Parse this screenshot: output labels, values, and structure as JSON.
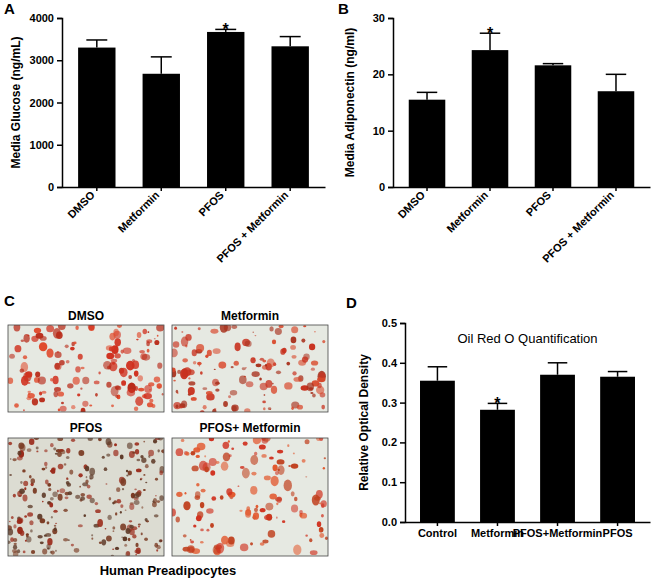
{
  "chart_data": [
    {
      "type": "bar",
      "panel": "A",
      "y_label": "Media Glucose (ng/mL)",
      "categories": [
        "DMSO",
        "Metformin",
        "PFOS",
        "PFOS + Metformin"
      ],
      "values": [
        3300,
        2680,
        3670,
        3330
      ],
      "errors": [
        180,
        400,
        60,
        230
      ],
      "color": "#000000",
      "ylim": [
        0,
        4000
      ],
      "yticks": [
        0,
        1000,
        2000,
        3000,
        4000
      ],
      "annotations": [
        {
          "text": "*",
          "index": 2
        }
      ]
    },
    {
      "type": "bar",
      "panel": "B",
      "y_label": "Media Adiponectin (ng/ml)",
      "categories": [
        "DMSO",
        "Metformin",
        "PFOS",
        "PFOS + Metformin"
      ],
      "values": [
        15.5,
        24.3,
        21.6,
        17.0
      ],
      "errors": [
        1.3,
        3.0,
        0.3,
        3.0
      ],
      "color": "#000000",
      "ylim": [
        0,
        30
      ],
      "yticks": [
        0,
        10,
        20,
        30
      ],
      "annotations": [
        {
          "text": "*",
          "index": 1
        }
      ]
    },
    {
      "type": "bar",
      "panel": "D",
      "title": "Oil Red O Quantification",
      "y_label": "Relative Optical Density",
      "categories": [
        "Control",
        "Metformin",
        "PFOS+Metformin",
        "PFOS"
      ],
      "values": [
        0.355,
        0.282,
        0.37,
        0.365
      ],
      "errors": [
        0.035,
        0.016,
        0.03,
        0.013
      ],
      "color": "#000000",
      "ylim": [
        0,
        0.5
      ],
      "yticks": [
        {
          "value": 0,
          "label": "0.0"
        },
        0.1,
        0.2,
        0.3,
        0.4,
        0.5
      ],
      "annotations": [
        {
          "text": "*",
          "index": 1
        }
      ]
    }
  ],
  "image_panel": {
    "panel": "C",
    "images": [
      "DMSO",
      "Metformin",
      "PFOS",
      "PFOS+ Metformin"
    ],
    "caption": "Human Preadipocytes"
  }
}
